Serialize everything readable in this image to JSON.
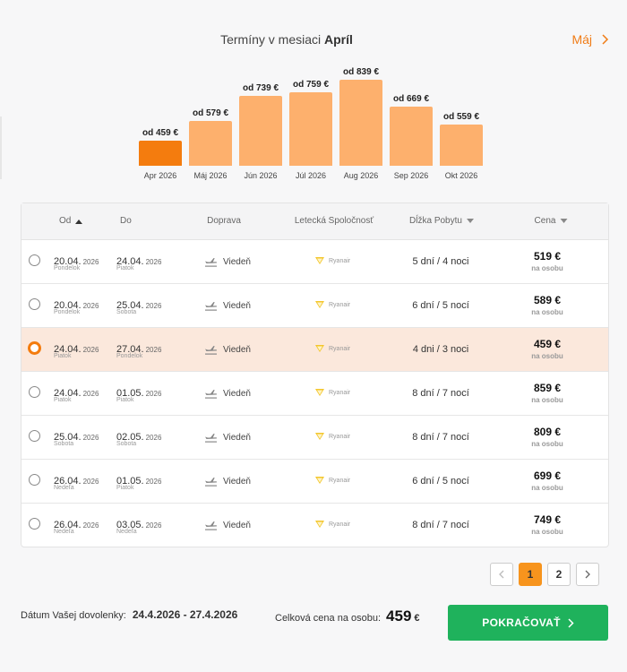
{
  "header": {
    "title_prefix": "Termíny v mesiaci",
    "title_month": "Apríl",
    "next_month_label": "Máj"
  },
  "chart_data": {
    "type": "bar",
    "categories": [
      "Apr 2026",
      "Máj 2026",
      "Jún 2026",
      "Júl 2026",
      "Aug 2026",
      "Sep 2026",
      "Okt 2026"
    ],
    "values": [
      459,
      579,
      739,
      759,
      839,
      669,
      559
    ],
    "value_labels": [
      "od 459 €",
      "od 579 €",
      "od 739 €",
      "od 759 €",
      "od 839 €",
      "od 669 €",
      "od 559 €"
    ],
    "active_index": 0,
    "colors": {
      "active": "#f47c0e",
      "default": "#fdb06d"
    }
  },
  "table": {
    "headers": {
      "od": "Od",
      "do": "Do",
      "doprava": "Doprava",
      "airline": "Letecká Spoločnosť",
      "dlzka": "Dĺžka Pobytu",
      "cena": "Cena"
    },
    "rows": [
      {
        "from_date": "20.04.",
        "from_year": "2026",
        "from_day": "Pondelok",
        "to_date": "24.04.",
        "to_year": "2026",
        "to_day": "Piatok",
        "transport": "Viedeň",
        "airline": "Ryanair",
        "length": "5 dní / 4 noci",
        "price": "519 €",
        "price_note": "na osobu",
        "selected": false
      },
      {
        "from_date": "20.04.",
        "from_year": "2026",
        "from_day": "Pondelok",
        "to_date": "25.04.",
        "to_year": "2026",
        "to_day": "Sobota",
        "transport": "Viedeň",
        "airline": "Ryanair",
        "length": "6 dní / 5 nocí",
        "price": "589 €",
        "price_note": "na osobu",
        "selected": false
      },
      {
        "from_date": "24.04.",
        "from_year": "2026",
        "from_day": "Piatok",
        "to_date": "27.04.",
        "to_year": "2026",
        "to_day": "Pondelok",
        "transport": "Viedeň",
        "airline": "Ryanair",
        "length": "4 dni / 3 noci",
        "price": "459 €",
        "price_note": "na osobu",
        "selected": true
      },
      {
        "from_date": "24.04.",
        "from_year": "2026",
        "from_day": "Piatok",
        "to_date": "01.05.",
        "to_year": "2026",
        "to_day": "Piatok",
        "transport": "Viedeň",
        "airline": "Ryanair",
        "length": "8 dní / 7 nocí",
        "price": "859 €",
        "price_note": "na osobu",
        "selected": false
      },
      {
        "from_date": "25.04.",
        "from_year": "2026",
        "from_day": "Sobota",
        "to_date": "02.05.",
        "to_year": "2026",
        "to_day": "Sobota",
        "transport": "Viedeň",
        "airline": "Ryanair",
        "length": "8 dní / 7 nocí",
        "price": "809 €",
        "price_note": "na osobu",
        "selected": false
      },
      {
        "from_date": "26.04.",
        "from_year": "2026",
        "from_day": "Nedeľa",
        "to_date": "01.05.",
        "to_year": "2026",
        "to_day": "Piatok",
        "transport": "Viedeň",
        "airline": "Ryanair",
        "length": "6 dní / 5 nocí",
        "price": "699 €",
        "price_note": "na osobu",
        "selected": false
      },
      {
        "from_date": "26.04.",
        "from_year": "2026",
        "from_day": "Nedeľa",
        "to_date": "03.05.",
        "to_year": "2026",
        "to_day": "Nedeľa",
        "transport": "Viedeň",
        "airline": "Ryanair",
        "length": "8 dní / 7 nocí",
        "price": "749 €",
        "price_note": "na osobu",
        "selected": false
      }
    ]
  },
  "pagination": {
    "pages": [
      "1",
      "2"
    ],
    "current": "1"
  },
  "footer": {
    "dates_label": "Dátum Vašej dovolenky:",
    "dates_value": "24.4.2026 - 27.4.2026",
    "total_label": "Celková cena na osobu:",
    "total_value": "459",
    "total_currency": "€",
    "cta_label": "POKRAČOVAŤ"
  }
}
